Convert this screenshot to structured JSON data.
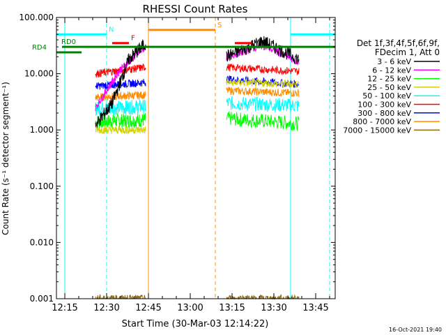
{
  "chart_data": {
    "type": "line",
    "title": "RHESSI Count Rates",
    "xlabel": "Start Time (30-Mar-03 12:14:22)",
    "ylabel": "Count Rate (s⁻¹ detector segment⁻¹)",
    "yscale": "log",
    "ylim": [
      0.001,
      100
    ],
    "xlim": [
      "12:12",
      "13:52"
    ],
    "x_ticks": [
      "12:15",
      "12:30",
      "12:45",
      "13:00",
      "13:15",
      "13:30",
      "13:45"
    ],
    "y_ticks": [
      "100.000",
      "10.000",
      "1.000",
      "0.100",
      "0.010",
      "0.001"
    ],
    "legend_title": [
      "Det 1f,3f,4f,5f,6f,9f,",
      "FDecim 1, Att 0"
    ],
    "legend_position": "right",
    "series": [
      {
        "name": "3 - 6 keV",
        "color": "#000000",
        "seg1": [
          1.2,
          3.0,
          18.0,
          35.0
        ],
        "seg2": [
          20.0,
          38.0,
          18.0
        ]
      },
      {
        "name": "6 - 12 keV",
        "color": "#ff00ff",
        "seg1": [
          2.5,
          12.0,
          30.0
        ],
        "seg2": [
          20.0,
          32.0,
          16.0
        ]
      },
      {
        "name": "12 - 25 keV",
        "color": "#00ff00",
        "seg1": [
          1.4,
          1.5
        ],
        "seg2": [
          1.6,
          1.3
        ]
      },
      {
        "name": "25 - 50 keV",
        "color": "#d2d200",
        "seg1": [
          1.0,
          1.0
        ],
        "seg2": [
          7.0,
          6.5
        ]
      },
      {
        "name": "50 - 100 keV",
        "color": "#00ffff",
        "seg1": [
          2.4,
          2.6
        ],
        "seg2": [
          3.0,
          2.7
        ]
      },
      {
        "name": "100 - 300 keV",
        "color": "#ff0000",
        "seg1": [
          10.0,
          13.0
        ],
        "seg2": [
          13.0,
          11.0
        ]
      },
      {
        "name": "300 - 800 keV",
        "color": "#0000ff",
        "seg1": [
          6.0,
          7.0
        ],
        "seg2": [
          8.0,
          6.5
        ]
      },
      {
        "name": "800 - 7000 keV",
        "color": "#ff8c00",
        "seg1": [
          3.8,
          4.2
        ],
        "seg2": [
          5.0,
          4.5
        ]
      },
      {
        "name": "7000 - 15000 keV",
        "color": "#8b6914",
        "seg1": [
          0.001,
          0.001
        ],
        "seg2": [
          0.001,
          0.001
        ]
      }
    ],
    "segments": [
      {
        "start": "12:26",
        "end": "12:44"
      },
      {
        "start": "13:13",
        "end": "13:39"
      }
    ],
    "annotations": [
      {
        "label": "N",
        "color": "#00ffff",
        "start": "12:12",
        "end": "12:30",
        "y": 50.0
      },
      {
        "label": "F",
        "color": "#ff0000",
        "start": "12:32",
        "end": "12:38",
        "y": 35.0
      },
      {
        "label": "S",
        "color": "#ff8c00",
        "start": "12:45",
        "end": "13:09",
        "y": 60.0
      },
      {
        "label": "",
        "color": "#ff0000",
        "start": "13:16",
        "end": "13:22",
        "y": 35.0
      },
      {
        "label": "",
        "color": "#00ffff",
        "start": "13:36",
        "end": "13:52",
        "y": 50.0
      },
      {
        "label": "RD0",
        "color": "#008000",
        "start": "12:14",
        "end": "13:52",
        "y": 30.0
      },
      {
        "label": "RD4",
        "color": "#008000",
        "start": "12:12",
        "end": "12:21",
        "y": 24.0
      }
    ],
    "vlines": [
      {
        "t": "12:15",
        "color": "#00ffff",
        "style": "solid"
      },
      {
        "t": "12:30",
        "color": "#00ffff",
        "style": "dashed"
      },
      {
        "t": "12:45",
        "color": "#ff8c00",
        "style": "solid"
      },
      {
        "t": "13:09",
        "color": "#ff8c00",
        "style": "dashed"
      },
      {
        "t": "13:36",
        "color": "#00ffff",
        "style": "solid"
      },
      {
        "t": "13:50",
        "color": "#00ffff",
        "style": "dashed"
      }
    ],
    "footer_timestamp": "16-Oct-2021 19:40"
  }
}
